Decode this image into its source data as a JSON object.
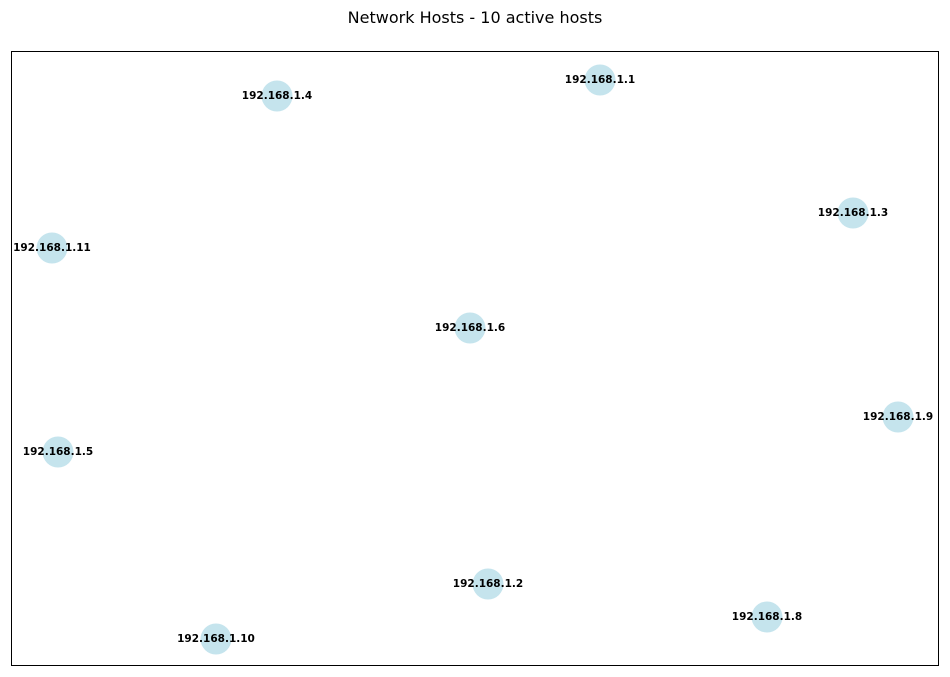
{
  "title": "Network Hosts - 10 active hosts",
  "node_color": "#add8e6",
  "hosts": [
    {
      "id": "192.168.1.1"
    },
    {
      "id": "192.168.1.4"
    },
    {
      "id": "192.168.1.3"
    },
    {
      "id": "192.168.1.11"
    },
    {
      "id": "192.168.1.6"
    },
    {
      "id": "192.168.1.9"
    },
    {
      "id": "192.168.1.5"
    },
    {
      "id": "192.168.1.2"
    },
    {
      "id": "192.168.1.8"
    },
    {
      "id": "192.168.1.10"
    }
  ]
}
